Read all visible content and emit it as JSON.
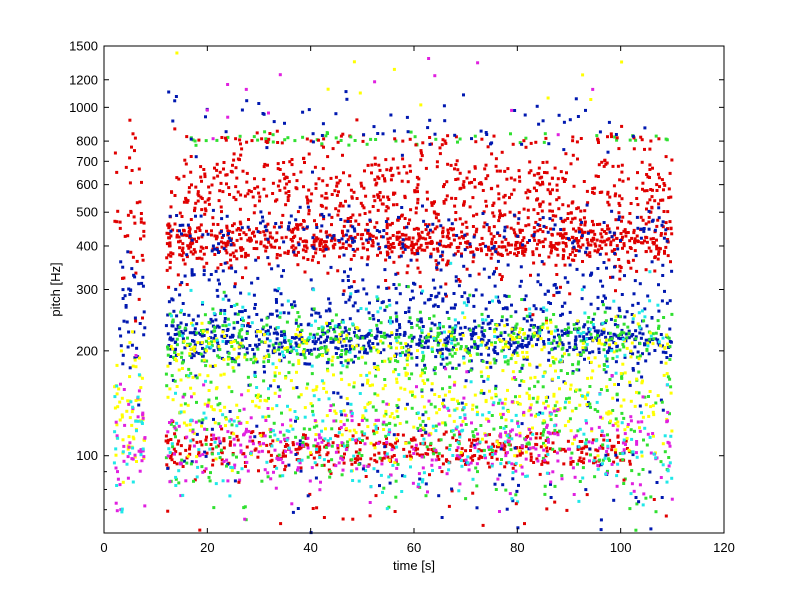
{
  "chart_data": {
    "type": "scatter",
    "title": "",
    "xlabel": "time [s]",
    "ylabel": "pitch [Hz]",
    "xlim": [
      0,
      120
    ],
    "ylim": [
      60,
      1500
    ],
    "yscale": "log",
    "grid": false,
    "legend": "none",
    "x_ticks": [
      0,
      20,
      40,
      60,
      80,
      100,
      120
    ],
    "x_tick_labels": [
      "0",
      "20",
      "40",
      "60",
      "80",
      "100",
      "120"
    ],
    "y_ticks": [
      100,
      200,
      300,
      400,
      500,
      600,
      700,
      800,
      1000,
      1200,
      1500
    ],
    "y_tick_labels": [
      "100",
      "200",
      "300",
      "400",
      "500",
      "600",
      "700",
      "800",
      "1000",
      "1200",
      "1500"
    ],
    "colors": {
      "red": "#e00000",
      "blue": "#0018b0",
      "green": "#30e030",
      "yellow": "#ffff00",
      "magenta": "#e020e0",
      "cyan": "#20e8e8"
    },
    "clusters": [
      {
        "color": "red",
        "x_range": [
          12,
          110
        ],
        "y_center": 410,
        "y_spread": 0.03,
        "count": 650
      },
      {
        "color": "red",
        "x_range": [
          12,
          110
        ],
        "y_center": 480,
        "y_spread": 0.09,
        "count": 520
      },
      {
        "color": "red",
        "x_range": [
          13,
          110
        ],
        "y_center": 610,
        "y_spread": 0.05,
        "count": 330
      },
      {
        "color": "red",
        "x_range": [
          12,
          102
        ],
        "y_center": 103,
        "y_spread": 0.03,
        "count": 420
      },
      {
        "color": "red",
        "x_range": [
          2,
          8
        ],
        "y_center": 480,
        "y_spread": 0.14,
        "count": 45
      },
      {
        "color": "blue",
        "x_range": [
          12,
          110
        ],
        "y_center": 212,
        "y_spread": 0.03,
        "count": 520
      },
      {
        "color": "blue",
        "x_range": [
          12,
          110
        ],
        "y_center": 265,
        "y_spread": 0.1,
        "count": 520
      },
      {
        "color": "blue",
        "x_range": [
          12,
          110
        ],
        "y_center": 440,
        "y_spread": 0.04,
        "count": 160
      },
      {
        "color": "blue",
        "x_range": [
          12,
          110
        ],
        "y_center": 118,
        "y_spread": 0.14,
        "count": 90
      },
      {
        "color": "blue",
        "x_range": [
          3,
          8
        ],
        "y_center": 250,
        "y_spread": 0.1,
        "count": 40
      },
      {
        "color": "green",
        "x_range": [
          12,
          110
        ],
        "y_center": 210,
        "y_spread": 0.05,
        "count": 440
      },
      {
        "color": "green",
        "x_range": [
          12,
          110
        ],
        "y_center": 112,
        "y_spread": 0.1,
        "count": 250
      },
      {
        "color": "green",
        "x_range": [
          12,
          110
        ],
        "y_center": 810,
        "y_spread": 0.01,
        "count": 55
      },
      {
        "color": "green",
        "x_range": [
          12,
          110
        ],
        "y_center": 140,
        "y_spread": 0.04,
        "count": 70
      },
      {
        "color": "yellow",
        "x_range": [
          12,
          110
        ],
        "y_center": 140,
        "y_spread": 0.08,
        "count": 360
      },
      {
        "color": "yellow",
        "x_range": [
          12,
          110
        ],
        "y_center": 210,
        "y_spread": 0.04,
        "count": 180
      },
      {
        "color": "yellow",
        "x_range": [
          2,
          8
        ],
        "y_center": 130,
        "y_spread": 0.1,
        "count": 55
      },
      {
        "color": "magenta",
        "x_range": [
          12,
          110
        ],
        "y_center": 108,
        "y_spread": 0.07,
        "count": 330
      },
      {
        "color": "magenta",
        "x_range": [
          2,
          8
        ],
        "y_center": 105,
        "y_spread": 0.1,
        "count": 40
      },
      {
        "color": "cyan",
        "x_range": [
          12,
          110
        ],
        "y_center": 110,
        "y_spread": 0.08,
        "count": 210
      },
      {
        "color": "cyan",
        "x_range": [
          12,
          110
        ],
        "y_center": 225,
        "y_spread": 0.08,
        "count": 130
      },
      {
        "color": "cyan",
        "x_range": [
          2,
          8
        ],
        "y_center": 110,
        "y_spread": 0.1,
        "count": 25
      },
      {
        "color": "red",
        "x_range": [
          12,
          108
        ],
        "y_center": 810,
        "y_spread": 0.008,
        "count": 55
      },
      {
        "color": "blue",
        "x_range": [
          12,
          108
        ],
        "y_center": 900,
        "y_spread": 0.06,
        "count": 70
      },
      {
        "color": "red",
        "x_range": [
          12,
          110
        ],
        "y_center": 70,
        "y_spread": 0.05,
        "count": 30
      },
      {
        "color": "blue",
        "x_range": [
          12,
          110
        ],
        "y_center": 75,
        "y_spread": 0.06,
        "count": 25
      },
      {
        "color": "yellow",
        "x_range": [
          12,
          110
        ],
        "y_center": 1200,
        "y_spread": 0.04,
        "count": 10
      },
      {
        "color": "magenta",
        "x_range": [
          12,
          110
        ],
        "y_center": 1050,
        "y_spread": 0.08,
        "count": 14
      }
    ]
  }
}
